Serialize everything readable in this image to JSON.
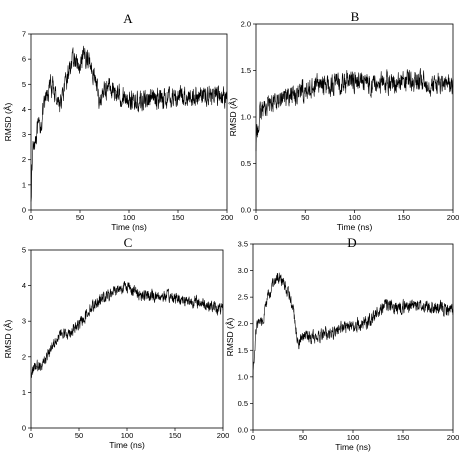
{
  "chart_data": [
    {
      "type": "line",
      "panel_label": "A",
      "xlabel": "Time (ns)",
      "ylabel": "RMSD (Å)",
      "xlim": [
        0,
        200
      ],
      "ylim": [
        0,
        7
      ],
      "xticks": [
        0,
        50,
        100,
        150,
        200
      ],
      "yticks": [
        0,
        1,
        2,
        3,
        4,
        5,
        6,
        7
      ],
      "grid": false,
      "series": [
        {
          "x": [
            0,
            2,
            5,
            10,
            15,
            20,
            25,
            30,
            35,
            40,
            45,
            50,
            55,
            60,
            65,
            70,
            75,
            80,
            90,
            100,
            110,
            120,
            140,
            160,
            180,
            200
          ],
          "y": [
            0.6,
            2.5,
            3.0,
            3.4,
            4.4,
            5.0,
            4.6,
            4.2,
            4.9,
            5.8,
            6.0,
            5.5,
            6.2,
            5.9,
            5.3,
            4.3,
            4.8,
            4.9,
            4.6,
            4.4,
            4.3,
            4.4,
            4.5,
            4.5,
            4.6,
            4.5
          ],
          "noise": 0.38
        }
      ]
    },
    {
      "type": "line",
      "panel_label": "B",
      "xlabel": "Time (ns)",
      "ylabel": "RMSD (Å)",
      "xlim": [
        0,
        200
      ],
      "ylim": [
        0.0,
        2.0
      ],
      "xticks": [
        0,
        50,
        100,
        150,
        200
      ],
      "yticks": [
        0.0,
        0.5,
        1.0,
        1.5,
        2.0
      ],
      "ytick_labels": [
        "0.0",
        "0.5",
        "1.0",
        "1.5",
        "2.0"
      ],
      "grid": false,
      "series": [
        {
          "x": [
            0,
            3,
            8,
            15,
            20,
            30,
            40,
            50,
            60,
            70,
            80,
            100,
            120,
            140,
            160,
            180,
            200
          ],
          "y": [
            0.7,
            1.0,
            1.1,
            1.15,
            1.2,
            1.22,
            1.25,
            1.28,
            1.35,
            1.35,
            1.35,
            1.38,
            1.35,
            1.38,
            1.38,
            1.36,
            1.34
          ],
          "noise": 0.11
        }
      ]
    },
    {
      "type": "line",
      "panel_label": "C",
      "xlabel": "Time (ns)",
      "ylabel": "RMSD (Å)",
      "xlim": [
        0,
        200
      ],
      "ylim": [
        0,
        5
      ],
      "xticks": [
        0,
        50,
        100,
        150,
        200
      ],
      "yticks": [
        0,
        1,
        2,
        3,
        4,
        5
      ],
      "grid": false,
      "series": [
        {
          "x": [
            0,
            5,
            10,
            15,
            20,
            25,
            30,
            40,
            50,
            60,
            70,
            80,
            90,
            100,
            110,
            120,
            140,
            160,
            180,
            200
          ],
          "y": [
            1.5,
            1.7,
            1.8,
            1.9,
            2.2,
            2.5,
            2.6,
            2.7,
            2.9,
            3.3,
            3.6,
            3.7,
            3.9,
            4.0,
            3.8,
            3.7,
            3.7,
            3.6,
            3.5,
            3.3
          ],
          "noise": 0.16
        }
      ]
    },
    {
      "type": "line",
      "panel_label": "D",
      "xlabel": "Time (ns)",
      "ylabel": "RMSD (Å)",
      "xlim": [
        0,
        200
      ],
      "ylim": [
        0.0,
        3.5
      ],
      "xticks": [
        0,
        50,
        100,
        150,
        200
      ],
      "yticks": [
        0.0,
        0.5,
        1.0,
        1.5,
        2.0,
        2.5,
        3.0,
        3.5
      ],
      "ytick_labels": [
        "0.0",
        "0.5",
        "1.0",
        "1.5",
        "2.0",
        "2.5",
        "3.0",
        "3.5"
      ],
      "grid": false,
      "series": [
        {
          "x": [
            0,
            3,
            6,
            10,
            15,
            20,
            25,
            30,
            35,
            40,
            45,
            50,
            60,
            70,
            80,
            90,
            100,
            110,
            120,
            130,
            140,
            160,
            180,
            200
          ],
          "y": [
            1.0,
            1.9,
            2.0,
            2.1,
            2.5,
            2.7,
            2.9,
            2.8,
            2.6,
            2.3,
            1.6,
            1.75,
            1.75,
            1.8,
            1.8,
            1.95,
            1.95,
            2.0,
            2.1,
            2.35,
            2.3,
            2.35,
            2.3,
            2.25
          ],
          "noise": 0.12
        }
      ]
    }
  ]
}
